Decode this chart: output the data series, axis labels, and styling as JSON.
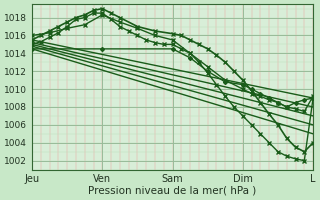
{
  "title": "",
  "xlabel": "Pression niveau de la mer( hPa )",
  "ylabel": "",
  "bg_color": "#c8e8c8",
  "plot_bg_color": "#d8eed8",
  "grid_major_color": "#99bb99",
  "grid_minor_color_v": "#ee9999",
  "grid_minor_color_h": "#bbddbb",
  "line_color": "#1a5c1a",
  "ylim": [
    1001.0,
    1019.5
  ],
  "yticks": [
    1002,
    1004,
    1006,
    1008,
    1010,
    1012,
    1014,
    1016,
    1018
  ],
  "day_labels": [
    "Jeu",
    "Ven",
    "Sam",
    "Dim",
    "L"
  ],
  "day_positions": [
    0,
    24,
    48,
    72,
    96
  ],
  "total_hours": 96,
  "lines": [
    {
      "x": [
        0,
        3,
        6,
        9,
        12,
        15,
        18,
        21,
        24,
        27,
        30,
        33,
        36,
        39,
        42,
        45,
        48,
        51,
        54,
        57,
        60,
        63,
        66,
        69,
        72,
        75,
        78,
        81,
        84,
        87,
        90,
        93,
        96
      ],
      "y": [
        1015.0,
        1015.3,
        1015.8,
        1016.3,
        1017.0,
        1017.8,
        1018.0,
        1018.5,
        1018.5,
        1017.8,
        1017.0,
        1016.5,
        1016.0,
        1015.5,
        1015.2,
        1015.0,
        1015.0,
        1014.5,
        1014.0,
        1013.0,
        1011.8,
        1010.5,
        1009.2,
        1008.0,
        1007.0,
        1006.0,
        1005.0,
        1004.0,
        1003.0,
        1002.5,
        1002.2,
        1002.0,
        1009.0
      ],
      "marker": "x",
      "ms": 3,
      "lw": 1.0
    },
    {
      "x": [
        0,
        96
      ],
      "y": [
        1015.5,
        1009.0
      ],
      "marker": null,
      "lw": 1.0
    },
    {
      "x": [
        0,
        96
      ],
      "y": [
        1015.2,
        1008.0
      ],
      "marker": null,
      "lw": 1.0
    },
    {
      "x": [
        0,
        96
      ],
      "y": [
        1015.0,
        1007.0
      ],
      "marker": null,
      "lw": 1.0
    },
    {
      "x": [
        0,
        96
      ],
      "y": [
        1014.8,
        1006.0
      ],
      "marker": null,
      "lw": 1.0
    },
    {
      "x": [
        0,
        96
      ],
      "y": [
        1014.5,
        1005.0
      ],
      "marker": null,
      "lw": 1.0
    },
    {
      "x": [
        0,
        24,
        48,
        54,
        60,
        66,
        72,
        75,
        78,
        81,
        84,
        87,
        90,
        93,
        96
      ],
      "y": [
        1014.5,
        1014.5,
        1014.5,
        1013.5,
        1012.0,
        1010.8,
        1010.5,
        1010.0,
        1009.5,
        1009.0,
        1008.5,
        1008.0,
        1008.5,
        1008.8,
        1009.0
      ],
      "marker": "D",
      "ms": 2,
      "lw": 1.0
    },
    {
      "x": [
        0,
        6,
        12,
        18,
        24,
        30,
        36,
        42,
        48,
        54,
        60,
        66,
        72,
        75,
        78,
        81,
        84,
        87,
        90,
        93,
        96
      ],
      "y": [
        1016.0,
        1016.3,
        1016.8,
        1017.2,
        1018.3,
        1017.5,
        1016.8,
        1016.0,
        1015.5,
        1014.0,
        1012.5,
        1011.0,
        1010.0,
        1009.5,
        1009.2,
        1008.8,
        1008.5,
        1008.0,
        1007.8,
        1007.5,
        1009.2
      ],
      "marker": "x",
      "ms": 3,
      "lw": 1.0
    },
    {
      "x": [
        0,
        3,
        6,
        9,
        12,
        15,
        18,
        21,
        24,
        27,
        30,
        36,
        42,
        48,
        51,
        54,
        57,
        60,
        63,
        66,
        69,
        72,
        75,
        78,
        81,
        84,
        87,
        90,
        93,
        96
      ],
      "y": [
        1015.5,
        1016.0,
        1016.5,
        1017.0,
        1017.5,
        1018.0,
        1018.3,
        1018.8,
        1019.0,
        1018.5,
        1018.0,
        1017.0,
        1016.5,
        1016.2,
        1016.0,
        1015.5,
        1015.0,
        1014.5,
        1013.8,
        1013.0,
        1012.0,
        1011.0,
        1009.8,
        1008.5,
        1007.2,
        1006.0,
        1004.5,
        1003.5,
        1003.0,
        1004.0
      ],
      "marker": "x",
      "ms": 3,
      "lw": 1.2
    }
  ]
}
